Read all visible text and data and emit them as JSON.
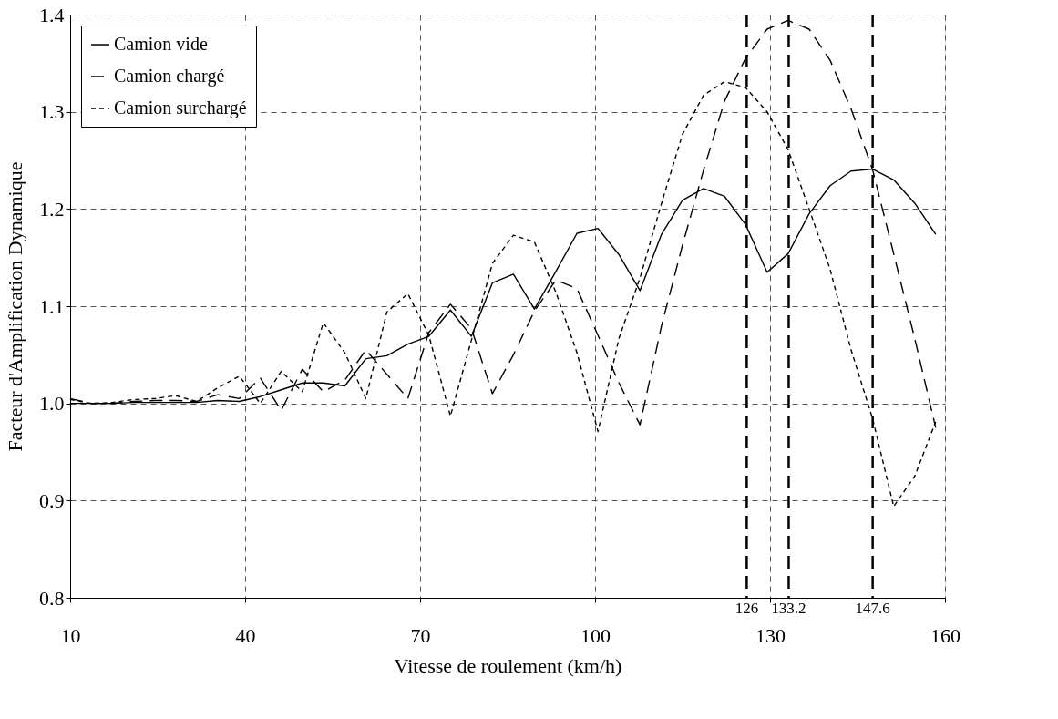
{
  "chart_data": {
    "type": "line",
    "xlabel": "Vitesse de roulement (km/h)",
    "ylabel": "Facteur d'Amplification Dynamique",
    "x": [
      10,
      13.6,
      17.2,
      20.9,
      24.5,
      28.1,
      31.7,
      35.3,
      39,
      42.6,
      46.2,
      49.8,
      53.4,
      57.1,
      60.7,
      64.3,
      67.9,
      71.5,
      75.2,
      78.8,
      82.4,
      86,
      89.6,
      93.3,
      96.9,
      100.5,
      104.1,
      107.7,
      111.4,
      115,
      118.6,
      122.2,
      125.8,
      129.5,
      133.1,
      136.7,
      140.3,
      143.9,
      147.6,
      151.2,
      154.8,
      158.4
    ],
    "series": [
      {
        "name": "Camion vide",
        "color": "#000000",
        "line_style": "solid",
        "values": [
          1.0,
          1.0,
          1.0,
          1.001,
          1.001,
          1.001,
          1.001,
          1.003,
          1.002,
          1.007,
          1.014,
          1.021,
          1.021,
          1.018,
          1.046,
          1.049,
          1.061,
          1.069,
          1.096,
          1.069,
          1.124,
          1.133,
          1.097,
          1.136,
          1.175,
          1.18,
          1.153,
          1.116,
          1.174,
          1.209,
          1.221,
          1.213,
          1.184,
          1.135,
          1.154,
          1.195,
          1.224,
          1.239,
          1.241,
          1.23,
          1.206,
          1.174
        ]
      },
      {
        "name": "Camion chargé",
        "color": "#000000",
        "line_style": "dashed",
        "values": [
          1.005,
          1.0,
          1.0,
          1.002,
          1.003,
          1.003,
          1.002,
          1.009,
          1.005,
          1.026,
          0.993,
          1.035,
          1.012,
          1.024,
          1.055,
          1.03,
          1.005,
          1.073,
          1.102,
          1.077,
          1.01,
          1.05,
          1.095,
          1.127,
          1.118,
          1.07,
          1.021,
          0.978,
          1.08,
          1.163,
          1.24,
          1.311,
          1.355,
          1.385,
          1.394,
          1.385,
          1.353,
          1.303,
          1.24,
          1.154,
          1.067,
          0.975
        ]
      },
      {
        "name": "Camion surchargé",
        "color": "#000000",
        "line_style": "dotted",
        "values": [
          1.004,
          1.0,
          1.001,
          1.004,
          1.005,
          1.008,
          1.002,
          1.016,
          1.028,
          1.0,
          1.033,
          1.012,
          1.083,
          1.052,
          1.005,
          1.094,
          1.113,
          1.07,
          0.987,
          1.065,
          1.144,
          1.173,
          1.166,
          1.114,
          1.052,
          0.971,
          1.067,
          1.129,
          1.206,
          1.277,
          1.317,
          1.331,
          1.325,
          1.3,
          1.261,
          1.2,
          1.138,
          1.055,
          0.984,
          0.894,
          0.925,
          0.981
        ]
      }
    ],
    "xlim": [
      10,
      160
    ],
    "xticks": [
      10,
      40,
      70,
      100,
      130,
      160
    ],
    "ylim": [
      0.8,
      1.4
    ],
    "yticks": [
      {
        "value": 0.8,
        "label": "0.8"
      },
      {
        "value": 0.9,
        "label": "0.9"
      },
      {
        "value": 1.0,
        "label": "1.0"
      },
      {
        "value": 1.1,
        "label": "1.1"
      },
      {
        "value": 1.2,
        "label": "1.2"
      },
      {
        "value": 1.3,
        "label": "1.3"
      },
      {
        "value": 1.4,
        "label": "1.4"
      }
    ],
    "ref_lines": [
      {
        "axis": "x",
        "value": 126,
        "label": "126",
        "color": "#000000",
        "line_style": "dashed"
      },
      {
        "axis": "x",
        "value": 133.2,
        "label": "133.2",
        "color": "#000000",
        "line_style": "dashed"
      },
      {
        "axis": "x",
        "value": 147.6,
        "label": "147.6",
        "color": "#000000",
        "line_style": "dashed"
      }
    ],
    "grid": true,
    "legend": "top left",
    "marker": "none"
  }
}
